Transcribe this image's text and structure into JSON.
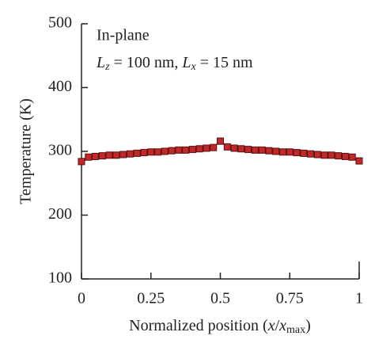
{
  "chart_data": {
    "type": "line",
    "x_label_parts": [
      "Normalized position (",
      "x",
      "/",
      "x",
      "max",
      ")"
    ],
    "y_label": "Temperature (K)",
    "annotation": "In-plane",
    "annotation2_parts": [
      "L",
      "z",
      " = 100 nm, ",
      "L",
      "x",
      " = 15 nm"
    ],
    "x": [
      0,
      0.025,
      0.05,
      0.075,
      0.1,
      0.125,
      0.15,
      0.175,
      0.2,
      0.225,
      0.25,
      0.275,
      0.3,
      0.325,
      0.35,
      0.375,
      0.4,
      0.425,
      0.45,
      0.475,
      0.5,
      0.525,
      0.55,
      0.575,
      0.6,
      0.625,
      0.65,
      0.675,
      0.7,
      0.725,
      0.75,
      0.775,
      0.8,
      0.825,
      0.85,
      0.875,
      0.9,
      0.925,
      0.95,
      0.975,
      1
    ],
    "series": [
      {
        "color": "#c0282a",
        "values": [
          284,
          291,
          292,
          293,
          294,
          294,
          295,
          296,
          297,
          298,
          299,
          299,
          300,
          301,
          302,
          302,
          303,
          304,
          305,
          306,
          316,
          307,
          305,
          304,
          303,
          302,
          302,
          301,
          300,
          299,
          299,
          298,
          297,
          296,
          295,
          294,
          294,
          293,
          292,
          291,
          285
        ]
      }
    ],
    "xlim": [
      0,
      1
    ],
    "xticks": [
      0,
      0.25,
      0.5,
      0.75,
      1
    ],
    "ylim": [
      100,
      500
    ],
    "yticks": [
      100,
      200,
      300,
      400,
      500
    ]
  }
}
